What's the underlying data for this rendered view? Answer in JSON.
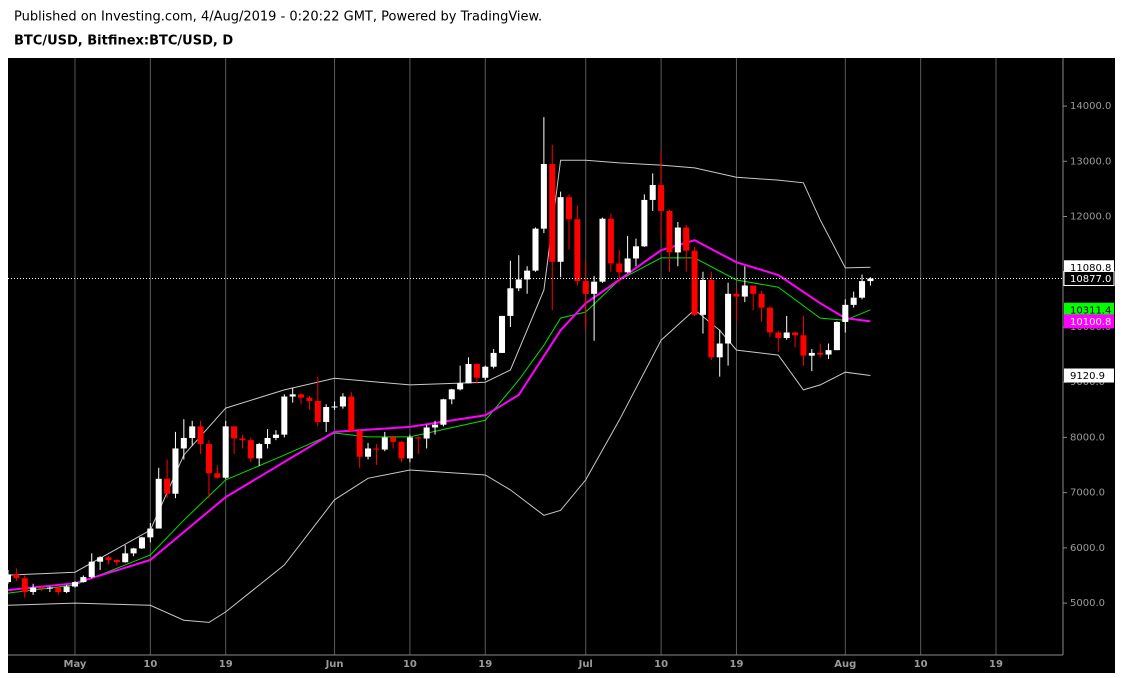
{
  "chart_data": {
    "type": "candlestick",
    "subtitle": "Published on Investing.com, 4/Aug/2019 - 0:20:22 GMT, Powered by TradingView.",
    "title": "BTC/USD, Bitfinex:BTC/USD, D",
    "xlim": [
      "Apr 23",
      "Aug 27"
    ],
    "xticks": [
      {
        "value": "May 1",
        "label": "May"
      },
      {
        "value": "May 10",
        "label": "10"
      },
      {
        "value": "May 19",
        "label": "19"
      },
      {
        "value": "Jun 1",
        "label": "Jun"
      },
      {
        "value": "Jun 10",
        "label": "10"
      },
      {
        "value": "Jun 19",
        "label": "19"
      },
      {
        "value": "Jul 1",
        "label": "Jul"
      },
      {
        "value": "Jul 10",
        "label": "10"
      },
      {
        "value": "Jul 19",
        "label": "19"
      },
      {
        "value": "Aug 1",
        "label": "Aug"
      },
      {
        "value": "Aug 10",
        "label": "10"
      },
      {
        "value": "Aug 19",
        "label": "19"
      }
    ],
    "ylim": [
      4060,
      14870
    ],
    "yticks": [
      {
        "value": 5000,
        "label": "5000.0"
      },
      {
        "value": 6000,
        "label": "6000.0"
      },
      {
        "value": 7000,
        "label": "7000.0"
      },
      {
        "value": 8000,
        "label": "8000.0"
      },
      {
        "value": 9000,
        "label": "9000.0"
      },
      {
        "value": 10000,
        "label": "10000.0"
      },
      {
        "value": 11000,
        "label": "11000.0"
      },
      {
        "value": 12000,
        "label": "12000.0"
      },
      {
        "value": 13000,
        "label": "13000.0"
      },
      {
        "value": 14000,
        "label": "14000.0"
      }
    ],
    "grid": "x",
    "up_color": "#ffffff",
    "down_color": "#ff0000",
    "x": [
      "Apr 23",
      "Apr 24",
      "Apr 25",
      "Apr 26",
      "Apr 27",
      "Apr 28",
      "Apr 29",
      "Apr 30",
      "May 1",
      "May 2",
      "May 3",
      "May 4",
      "May 5",
      "May 6",
      "May 7",
      "May 8",
      "May 9",
      "May 10",
      "May 11",
      "May 12",
      "May 13",
      "May 14",
      "May 15",
      "May 16",
      "May 17",
      "May 18",
      "May 19",
      "May 20",
      "May 21",
      "May 22",
      "May 23",
      "May 24",
      "May 25",
      "May 26",
      "May 27",
      "May 28",
      "May 29",
      "May 30",
      "May 31",
      "Jun 1",
      "Jun 2",
      "Jun 3",
      "Jun 4",
      "Jun 5",
      "Jun 6",
      "Jun 7",
      "Jun 8",
      "Jun 9",
      "Jun 10",
      "Jun 11",
      "Jun 12",
      "Jun 13",
      "Jun 14",
      "Jun 15",
      "Jun 16",
      "Jun 17",
      "Jun 18",
      "Jun 19",
      "Jun 20",
      "Jun 21",
      "Jun 22",
      "Jun 23",
      "Jun 24",
      "Jun 25",
      "Jun 26",
      "Jun 27",
      "Jun 28",
      "Jun 29",
      "Jun 30",
      "Jul 1",
      "Jul 2",
      "Jul 3",
      "Jul 4",
      "Jul 5",
      "Jul 6",
      "Jul 7",
      "Jul 8",
      "Jul 9",
      "Jul 10",
      "Jul 11",
      "Jul 12",
      "Jul 13",
      "Jul 14",
      "Jul 15",
      "Jul 16",
      "Jul 17",
      "Jul 18",
      "Jul 19",
      "Jul 20",
      "Jul 21",
      "Jul 22",
      "Jul 23",
      "Jul 24",
      "Jul 25",
      "Jul 26",
      "Jul 27",
      "Jul 28",
      "Jul 29",
      "Jul 30",
      "Jul 31",
      "Aug 1",
      "Aug 2",
      "Aug 3",
      "Aug 4"
    ],
    "open": [
      5380,
      5520,
      5450,
      5200,
      5280,
      5270,
      5280,
      5200,
      5300,
      5380,
      5470,
      5750,
      5830,
      5780,
      5740,
      5900,
      5990,
      6190,
      6350,
      7250,
      6980,
      7800,
      7990,
      8200,
      7880,
      7350,
      7270,
      8200,
      7980,
      7950,
      7620,
      7880,
      7990,
      8050,
      8740,
      8780,
      8720,
      8660,
      8280,
      8550,
      8560,
      8740,
      8120,
      7650,
      7800,
      7780,
      8000,
      7920,
      7620,
      8000,
      7980,
      8180,
      8230,
      8690,
      8870,
      8980,
      9330,
      9080,
      9280,
      9530,
      10200,
      10700,
      10860,
      11020,
      11780,
      12950,
      11180,
      12350,
      11950,
      10830,
      10600,
      10820,
      11960,
      11150,
      10990,
      11240,
      11460,
      12300,
      12570,
      12100,
      11350,
      11800,
      11380,
      10220,
      10850,
      9450,
      9700,
      10600,
      10550,
      10750,
      10600,
      10350,
      9900,
      9800,
      9900,
      9850,
      9480,
      9530,
      9500,
      9580,
      10090,
      10400,
      10530,
      10830
    ],
    "high": [
      5600,
      5630,
      5500,
      5350,
      5320,
      5300,
      5300,
      5330,
      5400,
      5500,
      5900,
      5850,
      5850,
      5800,
      6050,
      6000,
      6200,
      6450,
      7450,
      7600,
      8100,
      8330,
      8300,
      8300,
      7950,
      7500,
      8300,
      8200,
      8050,
      8000,
      7900,
      8150,
      8130,
      8780,
      8900,
      8800,
      8750,
      9100,
      8600,
      8650,
      8800,
      8820,
      8140,
      7900,
      7880,
      8100,
      8030,
      7940,
      8050,
      8020,
      8230,
      8300,
      8700,
      8880,
      9300,
      9450,
      9340,
      9300,
      9600,
      10200,
      11200,
      11300,
      11100,
      11800,
      13800,
      13300,
      12450,
      12400,
      12200,
      11200,
      10920,
      11980,
      12050,
      11400,
      11650,
      11600,
      12400,
      12780,
      13200,
      12120,
      11900,
      11850,
      11450,
      11000,
      11000,
      9950,
      10800,
      10700,
      11100,
      10750,
      10650,
      10370,
      9930,
      10200,
      9920,
      10200,
      9600,
      9700,
      9700,
      10100,
      10500,
      10640,
      10950,
      10900
    ],
    "low": [
      5350,
      5400,
      5100,
      5150,
      5220,
      5200,
      5150,
      5180,
      5280,
      5370,
      5450,
      5600,
      5700,
      5680,
      5730,
      5850,
      5980,
      6100,
      6350,
      6900,
      6900,
      7600,
      7850,
      7700,
      6900,
      7250,
      7250,
      7700,
      7800,
      7550,
      7480,
      7800,
      7950,
      8000,
      8630,
      8600,
      8500,
      8200,
      8100,
      8500,
      8520,
      8100,
      7450,
      7600,
      7500,
      7750,
      7800,
      7550,
      7550,
      7700,
      7800,
      8050,
      8200,
      8600,
      8850,
      8980,
      8970,
      9040,
      9250,
      9530,
      10000,
      10650,
      10600,
      11000,
      11700,
      10300,
      10900,
      11400,
      10750,
      9950,
      9750,
      10800,
      11000,
      10800,
      10980,
      11100,
      11450,
      12100,
      11600,
      11000,
      11100,
      11000,
      10200,
      9880,
      9400,
      9100,
      9300,
      10100,
      10450,
      10300,
      10100,
      9820,
      9550,
      9770,
      9630,
      9300,
      9200,
      9450,
      9420,
      9580,
      9900,
      10350,
      10500,
      10750
    ],
    "close": [
      5520,
      5450,
      5200,
      5280,
      5270,
      5280,
      5200,
      5300,
      5380,
      5470,
      5750,
      5830,
      5780,
      5740,
      5900,
      5990,
      6190,
      6350,
      7250,
      6980,
      7800,
      7990,
      8200,
      7880,
      7350,
      7270,
      8200,
      7980,
      7950,
      7620,
      7880,
      7990,
      8050,
      8740,
      8780,
      8720,
      8660,
      8280,
      8550,
      8560,
      8740,
      8120,
      7650,
      7800,
      7780,
      8000,
      7920,
      7620,
      8000,
      7980,
      8180,
      8230,
      8690,
      8870,
      8980,
      9330,
      9080,
      9280,
      9530,
      10200,
      10700,
      10860,
      11020,
      11780,
      12950,
      11180,
      12350,
      11950,
      10830,
      10600,
      10820,
      11960,
      11150,
      10990,
      11240,
      11460,
      12300,
      12570,
      12100,
      11350,
      11800,
      11380,
      10220,
      10850,
      9450,
      9700,
      10600,
      10550,
      10750,
      10600,
      10350,
      9900,
      9800,
      9900,
      9850,
      9480,
      9530,
      9500,
      9580,
      10090,
      10400,
      10530,
      10830,
      10877
    ],
    "lines": [
      {
        "color": "#c8c8c8",
        "x": [
          "Apr 23",
          "May 1",
          "May 10",
          "May 14",
          "May 19",
          "May 26",
          "Jun 1",
          "Jun 10",
          "Jun 19",
          "Jun 22",
          "Jun 26",
          "Jun 28",
          "Jul 1",
          "Jul 5",
          "Jul 10",
          "Jul 14",
          "Jul 19",
          "Jul 24",
          "Jul 27",
          "Jul 29",
          "Aug 1",
          "Aug 4"
        ],
        "values": [
          5506,
          5560,
          6320,
          7680,
          8530,
          8860,
          9070,
          8950,
          9000,
          9220,
          10670,
          13020,
          13020,
          12970,
          12930,
          12880,
          12710,
          12660,
          12610,
          11940,
          11070,
          11080.8
        ]
      },
      {
        "color": "#c8c8c8",
        "x": [
          "Apr 23",
          "May 1",
          "May 10",
          "May 14",
          "May 17",
          "May 19",
          "May 26",
          "Jun 1",
          "Jun 5",
          "Jun 10",
          "Jun 19",
          "Jun 22",
          "Jun 26",
          "Jun 28",
          "Jul 1",
          "Jul 5",
          "Jul 10",
          "Jul 14",
          "Jul 17",
          "Jul 19",
          "Jul 24",
          "Jul 27",
          "Jul 29",
          "Aug 1",
          "Aug 4"
        ],
        "values": [
          4960,
          5000,
          4960,
          4690,
          4650,
          4840,
          5690,
          6870,
          7260,
          7410,
          7320,
          7050,
          6590,
          6680,
          7230,
          8310,
          9760,
          10310,
          9940,
          9580,
          9490,
          8860,
          8950,
          9180,
          9120.9
        ]
      },
      {
        "color": "#00e000",
        "x": [
          "Apr 23",
          "May 1",
          "May 10",
          "May 14",
          "May 19",
          "May 26",
          "Jun 1",
          "Jun 5",
          "Jun 10",
          "Jun 19",
          "Jun 23",
          "Jun 26",
          "Jun 28",
          "Jul 1",
          "Jul 5",
          "Jul 10",
          "Jul 14",
          "Jul 19",
          "Jul 24",
          "Jul 29",
          "Aug 1",
          "Aug 4"
        ],
        "values": [
          5180,
          5330,
          5870,
          6500,
          7230,
          7680,
          8080,
          8010,
          8010,
          8310,
          9040,
          9670,
          10160,
          10270,
          10850,
          11250,
          11250,
          10850,
          10720,
          10160,
          10120,
          10311.4
        ]
      },
      {
        "color": "#ff00ff",
        "x": [
          "Apr 23",
          "May 1",
          "May 10",
          "May 19",
          "Jun 1",
          "Jun 10",
          "Jun 19",
          "Jun 23",
          "Jun 28",
          "Jul 1",
          "Jul 5",
          "Jul 10",
          "Jul 14",
          "Jul 19",
          "Jul 24",
          "Jul 29",
          "Aug 1",
          "Aug 4"
        ],
        "values": [
          5235,
          5360,
          5780,
          6920,
          8100,
          8190,
          8400,
          8770,
          9940,
          10430,
          10850,
          11390,
          11570,
          11170,
          10940,
          10430,
          10160,
          10100.8
        ]
      }
    ],
    "price_tags": [
      {
        "value": 11080.8,
        "label": "11080.8",
        "color": "#ffffff",
        "text_color": "#000000"
      },
      {
        "value": 10877,
        "label": "10877.0",
        "color": "#000000",
        "text_color": "#ffffff"
      },
      {
        "value": 10311.4,
        "label": "10311.4",
        "color": "#00ff00",
        "text_color": "#000000"
      },
      {
        "value": 10100.8,
        "label": "10100.8",
        "color": "#ff00ff",
        "text_color": "#ffffff"
      },
      {
        "value": 9120.9,
        "label": "9120.9",
        "color": "#ffffff",
        "text_color": "#000000"
      }
    ]
  }
}
